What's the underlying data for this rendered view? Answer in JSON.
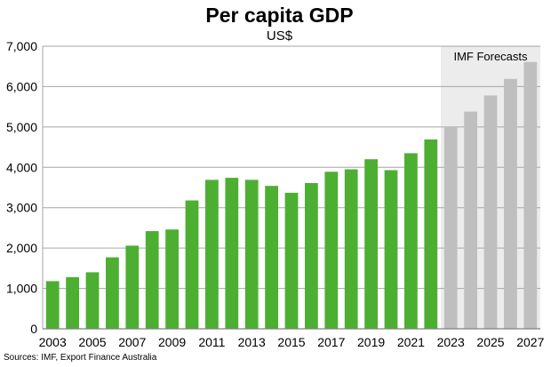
{
  "chart_data": {
    "type": "bar",
    "title": "Per capita GDP",
    "subtitle": "US$",
    "source": "Sources: IMF, Export Finance Australia",
    "forecast_label": "IMF Forecasts",
    "categories": [
      "2003",
      "2004",
      "2005",
      "2006",
      "2007",
      "2008",
      "2009",
      "2010",
      "2011",
      "2012",
      "2013",
      "2014",
      "2015",
      "2016",
      "2017",
      "2018",
      "2019",
      "2020",
      "2021",
      "2022",
      "2023",
      "2024",
      "2025",
      "2026",
      "2027"
    ],
    "values": [
      1180,
      1280,
      1400,
      1770,
      2060,
      2420,
      2460,
      3180,
      3690,
      3740,
      3690,
      3540,
      3370,
      3610,
      3890,
      3950,
      4200,
      3930,
      4350,
      4690,
      5000,
      5380,
      5780,
      6190,
      6610
    ],
    "forecast_start_index": 20,
    "x_tick_labels": [
      "2003",
      "2005",
      "2007",
      "2009",
      "2011",
      "2013",
      "2015",
      "2017",
      "2019",
      "2021",
      "2023",
      "2025",
      "2027"
    ],
    "y_ticks": [
      "0",
      "1,000",
      "2,000",
      "3,000",
      "4,000",
      "5,000",
      "6,000",
      "7,000"
    ],
    "ylim": [
      0,
      7000
    ],
    "grid": true,
    "colors": {
      "actual": "#4daf32",
      "forecast": "#bfbfbf",
      "forecast_band": "#ececec",
      "grid": "#a6a6a6"
    }
  }
}
